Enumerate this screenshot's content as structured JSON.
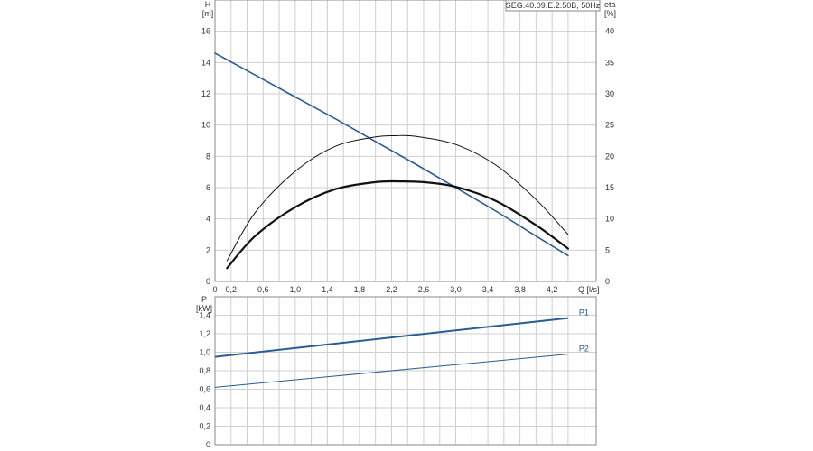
{
  "title_box": "SEG.40.09.E.2.50B, 50Hz",
  "colors": {
    "blue": "#2a5d93",
    "black": "#111111",
    "grid": "#cfcfcf",
    "frame": "#8a8a8a"
  },
  "chart_data": [
    {
      "type": "line",
      "name": "head_eta_plot",
      "ylabel": "H",
      "yunit": "[m]",
      "y2label": "eta",
      "y2unit": "[%]",
      "xlabel": "Q [l/s]",
      "xlim": [
        0,
        4.75
      ],
      "ylim": [
        0,
        18
      ],
      "y2lim": [
        0,
        45
      ],
      "xticks": [
        0,
        0.2,
        0.6,
        1.0,
        1.4,
        1.8,
        2.2,
        2.6,
        3.0,
        3.4,
        3.8,
        4.2
      ],
      "xticklabels": [
        "0",
        "0,2",
        "0,6",
        "1,0",
        "1,4",
        "1,8",
        "2,2",
        "2,6",
        "3,0",
        "3,4",
        "3,8",
        "4,2"
      ],
      "yticks": [
        0,
        2,
        4,
        6,
        8,
        10,
        12,
        14,
        16
      ],
      "y2ticks": [
        0,
        5,
        10,
        15,
        20,
        25,
        30,
        35,
        40
      ],
      "series": [
        {
          "axis": "y",
          "color": "#2a5d93",
          "width": 1.6,
          "x": [
            0,
            0.5,
            1.0,
            1.5,
            2.0,
            2.5,
            3.0,
            3.5,
            4.0,
            4.4
          ],
          "y": [
            14.6,
            13.2,
            11.8,
            10.4,
            8.95,
            7.5,
            6.0,
            4.5,
            2.9,
            1.65
          ]
        },
        {
          "axis": "y2",
          "color": "#111111",
          "width": 1.0,
          "x": [
            0.15,
            0.5,
            1.0,
            1.5,
            2.0,
            2.25,
            2.5,
            3.0,
            3.5,
            4.0,
            4.4
          ],
          "y": [
            3.3,
            11.0,
            17.6,
            21.6,
            23.1,
            23.3,
            23.2,
            21.9,
            18.6,
            13.1,
            7.5
          ]
        },
        {
          "axis": "y",
          "color": "#111111",
          "width": 2.2,
          "x": [
            0.15,
            0.5,
            1.0,
            1.5,
            2.0,
            2.3,
            2.6,
            3.0,
            3.5,
            4.0,
            4.4
          ],
          "y": [
            0.85,
            2.9,
            4.75,
            5.9,
            6.35,
            6.4,
            6.35,
            6.05,
            5.15,
            3.6,
            2.1
          ]
        }
      ]
    },
    {
      "type": "line",
      "name": "power_plot",
      "ylabel": "P",
      "yunit": "[kW]",
      "xlim": [
        0,
        4.75
      ],
      "ylim": [
        0,
        1.6
      ],
      "yticks": [
        0,
        0.2,
        0.4,
        0.6,
        0.8,
        1.0,
        1.2,
        1.4
      ],
      "yticklabels": [
        "0",
        "0,2",
        "0,4",
        "0,6",
        "0,8",
        "1,0",
        "1,2",
        "1,4"
      ],
      "series": [
        {
          "name": "P1",
          "color": "#2a5d93",
          "width": 2.0,
          "x": [
            0,
            4.4
          ],
          "y": [
            0.95,
            1.37
          ]
        },
        {
          "name": "P2",
          "color": "#2a5d93",
          "width": 1.0,
          "x": [
            0,
            4.4
          ],
          "y": [
            0.62,
            0.98
          ]
        }
      ]
    }
  ]
}
